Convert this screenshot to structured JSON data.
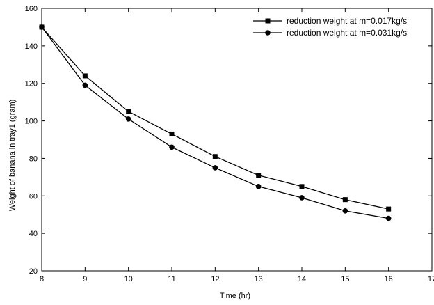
{
  "chart_data": {
    "type": "line",
    "xlabel": "Time (hr)",
    "ylabel": "Weight of banana in tray1 (gram)",
    "xlim": [
      8,
      17
    ],
    "ylim": [
      20,
      160
    ],
    "xticks": [
      8,
      9,
      10,
      11,
      12,
      13,
      14,
      15,
      16,
      17
    ],
    "xtick_labels": [
      "8",
      "9",
      "10",
      "11",
      "12",
      "13",
      "14",
      "15",
      "16",
      "17"
    ],
    "yticks": [
      20,
      40,
      60,
      80,
      100,
      120,
      140,
      160
    ],
    "yticks_visible_labels": [
      "20",
      "40",
      "60",
      "80",
      "100",
      "120",
      "140",
      "160"
    ],
    "grid": false,
    "legend_position": "top-right",
    "x": [
      8,
      9,
      10,
      11,
      12,
      13,
      14,
      15,
      16
    ],
    "series": [
      {
        "name": "reduction weight at m=0.017kg/s",
        "marker": "square",
        "color": "#000000",
        "values": [
          150,
          124,
          105,
          93,
          81,
          71,
          65,
          58,
          53
        ]
      },
      {
        "name": "reduction weight at m=0.031kg/s",
        "marker": "circle",
        "color": "#000000",
        "values": [
          150,
          119,
          101,
          86,
          75,
          65,
          59,
          52,
          48
        ]
      }
    ]
  }
}
